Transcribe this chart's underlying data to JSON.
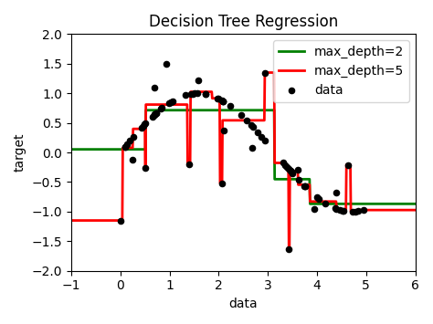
{
  "title": "Decision Tree Regression",
  "xlabel": "data",
  "ylabel": "target",
  "xlim": [
    -1,
    6
  ],
  "ylim": [
    -2.0,
    2.0
  ],
  "yticks": [
    -2.0,
    -1.5,
    -1.0,
    -0.5,
    0.0,
    0.5,
    1.0,
    1.5,
    2.0
  ],
  "xticks": [
    -1,
    0,
    1,
    2,
    3,
    4,
    5,
    6
  ],
  "legend_labels": [
    "max_depth=2",
    "max_depth=5",
    "data"
  ],
  "line_color_2": "green",
  "line_color_5": "red",
  "dot_color": "black",
  "random_seed": 1,
  "n_samples": 80,
  "figsize": [
    4.74,
    3.55
  ],
  "dpi": 100
}
